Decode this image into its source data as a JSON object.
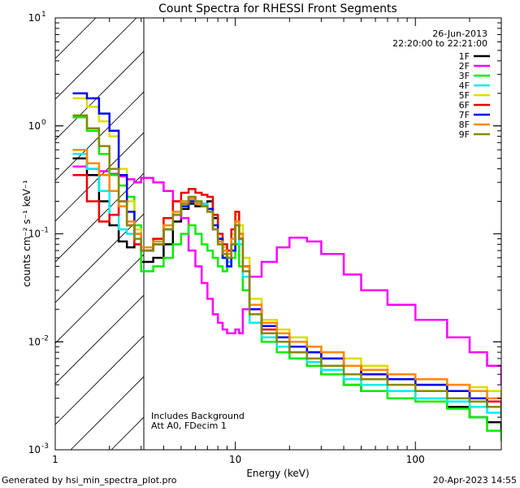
{
  "chart_data": {
    "type": "line",
    "title": "Count Spectra for RHESSI Front Segments",
    "xlabel": "Energy (keV)",
    "ylabel": "counts cm⁻² s⁻¹ keV⁻¹",
    "xscale": "log",
    "yscale": "log",
    "xlim": [
      1,
      300
    ],
    "ylim": [
      0.001,
      10
    ],
    "x_tick_labels": [
      {
        "value": 1,
        "label": "1"
      },
      {
        "value": 10,
        "label": "10"
      },
      {
        "value": 100,
        "label": "100"
      }
    ],
    "y_tick_labels": [
      {
        "value": 10,
        "mantissa": "10",
        "exponent": "1"
      },
      {
        "value": 1,
        "mantissa": "10",
        "exponent": "0"
      },
      {
        "value": 0.1,
        "mantissa": "10",
        "exponent": "-1"
      },
      {
        "value": 0.01,
        "mantissa": "10",
        "exponent": "-2"
      },
      {
        "value": 0.001,
        "mantissa": "10",
        "exponent": "-3"
      }
    ],
    "date_label": "26-Jun-2013",
    "time_range_label": "22:20:00 to 22:21:00",
    "excluded_region": {
      "x_from": 1,
      "x_to": 3,
      "style": "hatched"
    },
    "annotations": [
      "Includes Background",
      "Att A0, FDecim 1"
    ],
    "legend_position": "top-right",
    "series": [
      {
        "name": "1F",
        "color": "#000000",
        "x": [
          1.25,
          1.5,
          1.75,
          2,
          2.25,
          2.5,
          2.75,
          3,
          3.5,
          4,
          4.5,
          5,
          5.5,
          6,
          6.5,
          7,
          7.5,
          8,
          8.5,
          9,
          9.5,
          10,
          10.5,
          11,
          12,
          14,
          17,
          20,
          25,
          30,
          40,
          50,
          70,
          100,
          150,
          200,
          250,
          300
        ],
        "y": [
          0.5,
          0.35,
          0.2,
          0.12,
          0.085,
          0.075,
          0.08,
          0.055,
          0.06,
          0.08,
          0.13,
          0.17,
          0.19,
          0.18,
          0.19,
          0.2,
          0.14,
          0.09,
          0.07,
          0.06,
          0.08,
          0.13,
          0.09,
          0.05,
          0.02,
          0.012,
          0.009,
          0.007,
          0.006,
          0.005,
          0.004,
          0.0035,
          0.0035,
          0.003,
          0.0025,
          0.002,
          0.0018,
          0.0015
        ]
      },
      {
        "name": "2F",
        "color": "#ff00ff",
        "x": [
          1.25,
          1.5,
          1.75,
          2,
          2.25,
          2.5,
          2.75,
          3,
          3.5,
          4,
          4.5,
          5,
          5.5,
          6,
          6.5,
          7,
          7.5,
          8,
          8.5,
          9,
          9.5,
          10,
          10.5,
          11,
          12,
          14,
          17,
          20,
          25,
          30,
          40,
          50,
          70,
          100,
          150,
          200,
          250,
          300
        ],
        "y": [
          0.42,
          0.4,
          0.38,
          0.36,
          0.34,
          0.32,
          0.3,
          0.33,
          0.3,
          0.25,
          0.2,
          0.14,
          0.07,
          0.05,
          0.035,
          0.025,
          0.018,
          0.015,
          0.013,
          0.012,
          0.012,
          0.013,
          0.012,
          0.02,
          0.04,
          0.055,
          0.075,
          0.092,
          0.085,
          0.065,
          0.042,
          0.03,
          0.022,
          0.016,
          0.011,
          0.008,
          0.006,
          0.004
        ]
      },
      {
        "name": "3F",
        "color": "#00ee00",
        "x": [
          1.25,
          1.5,
          1.75,
          2,
          2.25,
          2.5,
          2.75,
          3,
          3.5,
          4,
          4.5,
          5,
          5.5,
          6,
          6.5,
          7,
          7.5,
          8,
          8.5,
          9,
          9.5,
          10,
          10.5,
          11,
          12,
          14,
          17,
          20,
          25,
          30,
          40,
          50,
          70,
          100,
          150,
          200,
          250,
          300
        ],
        "y": [
          1.2,
          0.9,
          0.55,
          0.35,
          0.28,
          0.22,
          0.12,
          0.045,
          0.05,
          0.06,
          0.08,
          0.1,
          0.12,
          0.1,
          0.08,
          0.07,
          0.06,
          0.05,
          0.045,
          0.05,
          0.06,
          0.08,
          0.05,
          0.03,
          0.015,
          0.01,
          0.008,
          0.007,
          0.006,
          0.005,
          0.004,
          0.0035,
          0.003,
          0.0028,
          0.0024,
          0.002,
          0.0015,
          0.0012
        ]
      },
      {
        "name": "4F",
        "color": "#00eeee",
        "x": [
          1.25,
          1.5,
          1.75,
          2,
          2.25,
          2.5,
          2.75,
          3,
          3.5,
          4,
          4.5,
          5,
          5.5,
          6,
          6.5,
          7,
          7.5,
          8,
          8.5,
          9,
          9.5,
          10,
          10.5,
          11,
          12,
          14,
          17,
          20,
          25,
          30,
          40,
          50,
          70,
          100,
          150,
          200,
          250,
          300
        ],
        "y": [
          0.55,
          0.4,
          0.25,
          0.15,
          0.11,
          0.1,
          0.08,
          0.07,
          0.08,
          0.11,
          0.16,
          0.2,
          0.22,
          0.2,
          0.19,
          0.17,
          0.11,
          0.08,
          0.06,
          0.055,
          0.08,
          0.12,
          0.08,
          0.04,
          0.015,
          0.011,
          0.009,
          0.008,
          0.0065,
          0.0055,
          0.0045,
          0.004,
          0.0035,
          0.003,
          0.0028,
          0.0025,
          0.0022,
          0.002
        ]
      },
      {
        "name": "5F",
        "color": "#dddd00",
        "x": [
          1.25,
          1.5,
          1.75,
          2,
          2.25,
          2.5,
          2.75,
          3,
          3.5,
          4,
          4.5,
          5,
          5.5,
          6,
          6.5,
          7,
          7.5,
          8,
          8.5,
          9,
          9.5,
          10,
          10.5,
          11,
          12,
          14,
          17,
          20,
          25,
          30,
          40,
          50,
          70,
          100,
          150,
          200,
          250,
          300
        ],
        "y": [
          1.8,
          1.5,
          1.1,
          0.8,
          0.4,
          0.2,
          0.11,
          0.07,
          0.09,
          0.12,
          0.16,
          0.19,
          0.2,
          0.19,
          0.18,
          0.17,
          0.12,
          0.09,
          0.075,
          0.07,
          0.1,
          0.15,
          0.12,
          0.06,
          0.025,
          0.016,
          0.013,
          0.011,
          0.009,
          0.008,
          0.007,
          0.006,
          0.005,
          0.0045,
          0.004,
          0.0038,
          0.0035,
          0.003
        ]
      },
      {
        "name": "6F",
        "color": "#ee0000",
        "x": [
          1.25,
          1.5,
          1.75,
          2,
          2.25,
          2.5,
          2.75,
          3,
          3.5,
          4,
          4.5,
          5,
          5.5,
          6,
          6.5,
          7,
          7.5,
          8,
          8.5,
          9,
          9.5,
          10,
          10.5,
          11,
          12,
          14,
          17,
          20,
          25,
          30,
          40,
          50,
          70,
          100,
          150,
          200,
          250,
          300
        ],
        "y": [
          0.35,
          0.2,
          0.13,
          0.15,
          0.2,
          0.12,
          0.08,
          0.07,
          0.09,
          0.14,
          0.2,
          0.24,
          0.26,
          0.24,
          0.23,
          0.22,
          0.15,
          0.1,
          0.08,
          0.07,
          0.11,
          0.16,
          0.1,
          0.05,
          0.02,
          0.013,
          0.011,
          0.009,
          0.008,
          0.007,
          0.006,
          0.005,
          0.0045,
          0.004,
          0.0035,
          0.003,
          0.0028,
          0.0025
        ]
      },
      {
        "name": "7F",
        "color": "#0000ee",
        "x": [
          1.25,
          1.5,
          1.75,
          2,
          2.25,
          2.5,
          2.75,
          3,
          3.5,
          4,
          4.5,
          5,
          5.5,
          6,
          6.5,
          7,
          7.5,
          8,
          8.5,
          9,
          9.5,
          10,
          10.5,
          11,
          12,
          14,
          17,
          20,
          25,
          30,
          40,
          50,
          70,
          100,
          150,
          200,
          250,
          300
        ],
        "y": [
          2.0,
          1.8,
          1.3,
          0.9,
          0.35,
          0.16,
          0.1,
          0.07,
          0.08,
          0.11,
          0.15,
          0.18,
          0.2,
          0.19,
          0.18,
          0.17,
          0.12,
          0.09,
          0.06,
          0.05,
          0.07,
          0.12,
          0.09,
          0.05,
          0.02,
          0.014,
          0.011,
          0.009,
          0.008,
          0.007,
          0.006,
          0.005,
          0.0045,
          0.004,
          0.0035,
          0.003,
          0.0025,
          0.002
        ]
      },
      {
        "name": "8F",
        "color": "#ff8800",
        "x": [
          1.25,
          1.5,
          1.75,
          2,
          2.25,
          2.5,
          2.75,
          3,
          3.5,
          4,
          4.5,
          5,
          5.5,
          6,
          6.5,
          7,
          7.5,
          8,
          8.5,
          9,
          9.5,
          10,
          10.5,
          11,
          12,
          14,
          17,
          20,
          25,
          30,
          40,
          50,
          70,
          100,
          150,
          200,
          250,
          300
        ],
        "y": [
          0.6,
          0.45,
          0.35,
          0.25,
          0.18,
          0.13,
          0.1,
          0.075,
          0.085,
          0.12,
          0.16,
          0.2,
          0.21,
          0.19,
          0.18,
          0.16,
          0.11,
          0.085,
          0.07,
          0.065,
          0.09,
          0.13,
          0.1,
          0.05,
          0.022,
          0.015,
          0.012,
          0.01,
          0.009,
          0.008,
          0.006,
          0.0055,
          0.005,
          0.0045,
          0.004,
          0.0035,
          0.003,
          0.0028
        ]
      },
      {
        "name": "9F",
        "color": "#888800",
        "x": [
          1.25,
          1.5,
          1.75,
          2,
          2.25,
          2.5,
          2.75,
          3,
          3.5,
          4,
          4.5,
          5,
          5.5,
          6,
          6.5,
          7,
          7.5,
          8,
          8.5,
          9,
          9.5,
          10,
          10.5,
          11,
          12,
          14,
          17,
          20,
          25,
          30,
          40,
          50,
          70,
          100,
          150,
          200,
          250,
          300
        ],
        "y": [
          1.25,
          0.95,
          0.65,
          0.4,
          0.2,
          0.12,
          0.09,
          0.07,
          0.08,
          0.11,
          0.15,
          0.19,
          0.22,
          0.2,
          0.18,
          0.16,
          0.11,
          0.08,
          0.065,
          0.06,
          0.08,
          0.12,
          0.09,
          0.045,
          0.018,
          0.012,
          0.01,
          0.008,
          0.007,
          0.006,
          0.005,
          0.0045,
          0.004,
          0.0035,
          0.003,
          0.0028,
          0.0025,
          0.002
        ]
      }
    ]
  },
  "footer": {
    "generated_by": "Generated by hsi_min_spectra_plot.pro",
    "timestamp": "20-Apr-2023 14:55"
  }
}
